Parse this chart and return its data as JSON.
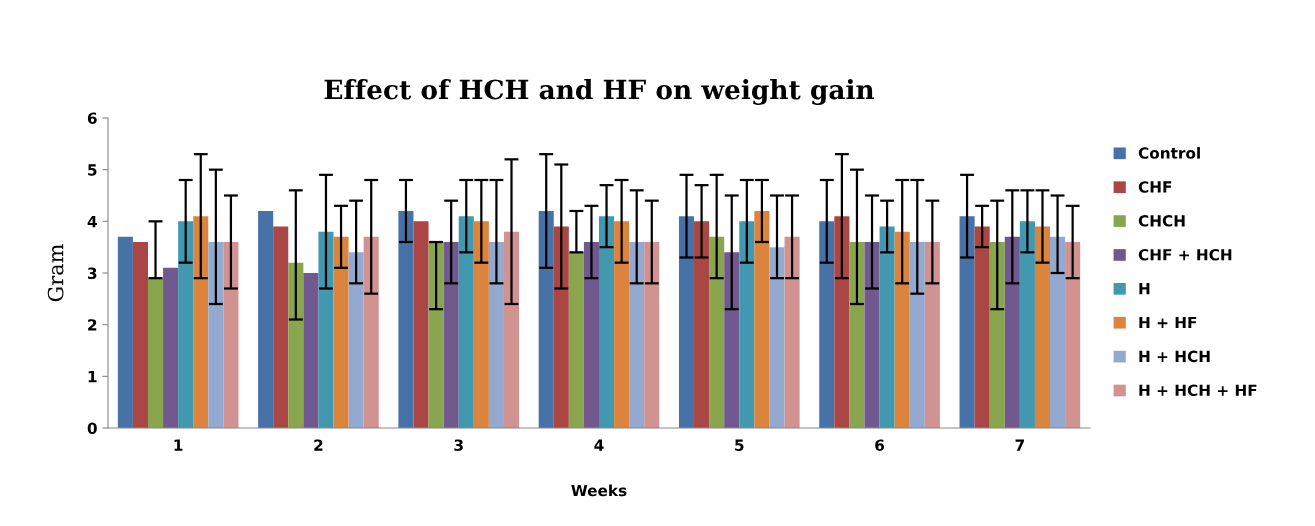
{
  "chart_data": {
    "type": "bar",
    "title": "Effect of HCH and HF on weight gain",
    "xlabel": "Weeks",
    "ylabel": "Gram",
    "categories": [
      "1",
      "2",
      "3",
      "4",
      "5",
      "6",
      "7"
    ],
    "ylim": [
      0,
      6
    ],
    "yticks": [
      0,
      1,
      2,
      3,
      4,
      5,
      6
    ],
    "grid": false,
    "legend": "right",
    "series": [
      {
        "name": "Control",
        "color": "#4672a8",
        "values": [
          3.7,
          4.2,
          4.2,
          4.2,
          4.1,
          4.0,
          4.1
        ],
        "errors": [
          null,
          null,
          [
            3.6,
            4.8
          ],
          [
            3.1,
            5.3
          ],
          [
            3.3,
            4.9
          ],
          [
            3.2,
            4.8
          ],
          [
            3.3,
            4.9
          ]
        ]
      },
      {
        "name": "CHF",
        "color": "#aa4644",
        "values": [
          3.6,
          3.9,
          4.0,
          3.9,
          4.0,
          4.1,
          3.9
        ],
        "errors": [
          null,
          null,
          null,
          [
            2.7,
            5.1
          ],
          [
            3.3,
            4.7
          ],
          [
            2.9,
            5.3
          ],
          [
            3.5,
            4.3
          ]
        ]
      },
      {
        "name": "CHCH",
        "color": "#89a54e",
        "values": [
          2.9,
          3.2,
          3.6,
          3.4,
          3.7,
          3.6,
          3.6
        ],
        "errors": [
          [
            2.9,
            4.0
          ],
          [
            2.1,
            4.6
          ],
          [
            2.3,
            3.6
          ],
          [
            3.4,
            4.2
          ],
          [
            2.9,
            4.9
          ],
          [
            2.4,
            5.0
          ],
          [
            2.3,
            4.4
          ]
        ]
      },
      {
        "name": "CHF + HCH",
        "color": "#71588f",
        "values": [
          3.1,
          3.0,
          3.6,
          3.6,
          3.4,
          3.6,
          3.7
        ],
        "errors": [
          null,
          null,
          [
            2.8,
            4.4
          ],
          [
            2.9,
            4.3
          ],
          [
            2.3,
            4.5
          ],
          [
            2.7,
            4.5
          ],
          [
            2.8,
            4.6
          ]
        ]
      },
      {
        "name": "H",
        "color": "#4198af",
        "values": [
          4.0,
          3.8,
          4.1,
          4.1,
          4.0,
          3.9,
          4.0
        ],
        "errors": [
          [
            3.2,
            4.8
          ],
          [
            2.7,
            4.9
          ],
          [
            3.4,
            4.8
          ],
          [
            3.5,
            4.7
          ],
          [
            3.2,
            4.8
          ],
          [
            3.4,
            4.4
          ],
          [
            3.4,
            4.6
          ]
        ]
      },
      {
        "name": "H + HF",
        "color": "#db843d",
        "values": [
          4.1,
          3.7,
          4.0,
          4.0,
          4.2,
          3.8,
          3.9
        ],
        "errors": [
          [
            2.9,
            5.3
          ],
          [
            3.1,
            4.3
          ],
          [
            3.2,
            4.8
          ],
          [
            3.2,
            4.8
          ],
          [
            3.6,
            4.8
          ],
          [
            2.8,
            4.8
          ],
          [
            3.2,
            4.6
          ]
        ]
      },
      {
        "name": "H + HCH",
        "color": "#93a9cf",
        "values": [
          3.6,
          3.4,
          3.6,
          3.6,
          3.5,
          3.6,
          3.7
        ],
        "errors": [
          [
            2.4,
            5.0
          ],
          [
            2.8,
            4.4
          ],
          [
            2.8,
            4.8
          ],
          [
            2.8,
            4.6
          ],
          [
            2.9,
            4.5
          ],
          [
            2.6,
            4.8
          ],
          [
            3.0,
            4.5
          ]
        ]
      },
      {
        "name": "H + HCH + HF",
        "color": "#d19392",
        "values": [
          3.6,
          3.7,
          3.8,
          3.6,
          3.7,
          3.6,
          3.6
        ],
        "errors": [
          [
            2.7,
            4.5
          ],
          [
            2.6,
            4.8
          ],
          [
            2.4,
            5.2
          ],
          [
            2.8,
            4.4
          ],
          [
            2.9,
            4.5
          ],
          [
            2.8,
            4.4
          ],
          [
            2.9,
            4.3
          ]
        ]
      }
    ]
  }
}
